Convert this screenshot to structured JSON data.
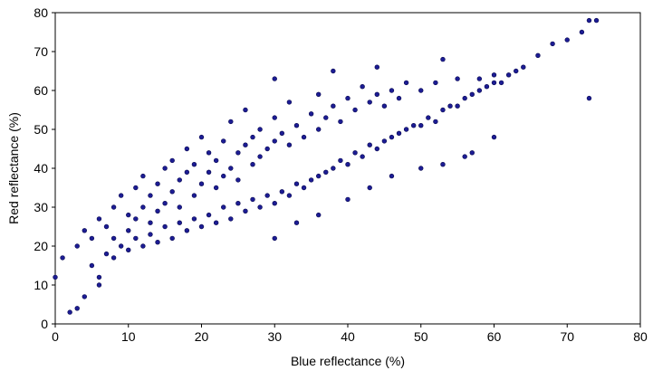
{
  "chart_data": {
    "type": "scatter",
    "x_label": "Blue reflectance (%)",
    "y_label": "Red reflectance (%)",
    "color": "#1c1c94",
    "edge_color": "#0a0a50",
    "xlim": [
      0,
      80
    ],
    "ylim": [
      0,
      80
    ],
    "xticks": [
      0,
      10,
      20,
      30,
      40,
      50,
      60,
      70,
      80
    ],
    "yticks": [
      0,
      10,
      20,
      30,
      40,
      50,
      60,
      70,
      80
    ],
    "x": [
      3,
      4,
      5,
      6,
      7,
      8,
      8,
      9,
      10,
      10,
      11,
      11,
      12,
      12,
      13,
      13,
      14,
      14,
      15,
      15,
      16,
      16,
      17,
      17,
      18,
      18,
      19,
      19,
      20,
      20,
      21,
      21,
      22,
      22,
      23,
      23,
      24,
      24,
      25,
      25,
      26,
      26,
      27,
      27,
      28,
      28,
      29,
      30,
      30,
      31,
      32,
      32,
      33,
      34,
      35,
      36,
      36,
      37,
      38,
      39,
      40,
      41,
      42,
      43,
      44,
      45,
      46,
      47,
      48,
      50,
      52,
      55,
      58,
      60,
      5,
      6,
      7,
      8,
      9,
      10,
      11,
      12,
      13,
      14,
      15,
      16,
      17,
      18,
      19,
      20,
      21,
      22,
      23,
      24,
      25,
      26,
      27,
      28,
      29,
      30,
      31,
      32,
      33,
      34,
      35,
      36,
      37,
      38,
      39,
      40,
      41,
      42,
      43,
      44,
      45,
      46,
      47,
      48,
      49,
      50,
      51,
      52,
      53,
      54,
      55,
      56,
      57,
      58,
      59,
      60,
      61,
      62,
      63,
      64,
      30,
      33,
      36,
      40,
      43,
      46,
      50,
      53,
      56,
      57,
      60,
      0,
      1,
      2,
      3,
      4,
      6,
      73,
      74,
      72,
      70,
      68,
      66,
      73,
      30,
      38,
      44,
      53
    ],
    "values": [
      20,
      24,
      22,
      27,
      25,
      30,
      22,
      33,
      28,
      24,
      35,
      27,
      30,
      38,
      26,
      33,
      36,
      29,
      40,
      31,
      34,
      42,
      30,
      37,
      39,
      45,
      33,
      41,
      36,
      48,
      39,
      44,
      35,
      42,
      47,
      38,
      40,
      52,
      44,
      37,
      46,
      55,
      41,
      48,
      50,
      43,
      45,
      53,
      47,
      49,
      57,
      46,
      51,
      48,
      54,
      50,
      59,
      53,
      56,
      52,
      58,
      55,
      61,
      57,
      59,
      56,
      60,
      58,
      62,
      60,
      62,
      63,
      63,
      64,
      15,
      12,
      18,
      17,
      20,
      19,
      22,
      20,
      23,
      21,
      25,
      22,
      26,
      24,
      27,
      25,
      28,
      26,
      30,
      27,
      31,
      29,
      32,
      30,
      33,
      31,
      34,
      33,
      36,
      35,
      37,
      38,
      39,
      40,
      42,
      41,
      44,
      43,
      46,
      45,
      47,
      48,
      49,
      50,
      51,
      51,
      53,
      52,
      55,
      56,
      56,
      58,
      59,
      60,
      61,
      62,
      62,
      64,
      65,
      66,
      22,
      26,
      28,
      32,
      35,
      38,
      40,
      41,
      43,
      44,
      48,
      12,
      17,
      3,
      4,
      7,
      10,
      78,
      78,
      75,
      73,
      72,
      69,
      58,
      63,
      65,
      66,
      68
    ]
  }
}
